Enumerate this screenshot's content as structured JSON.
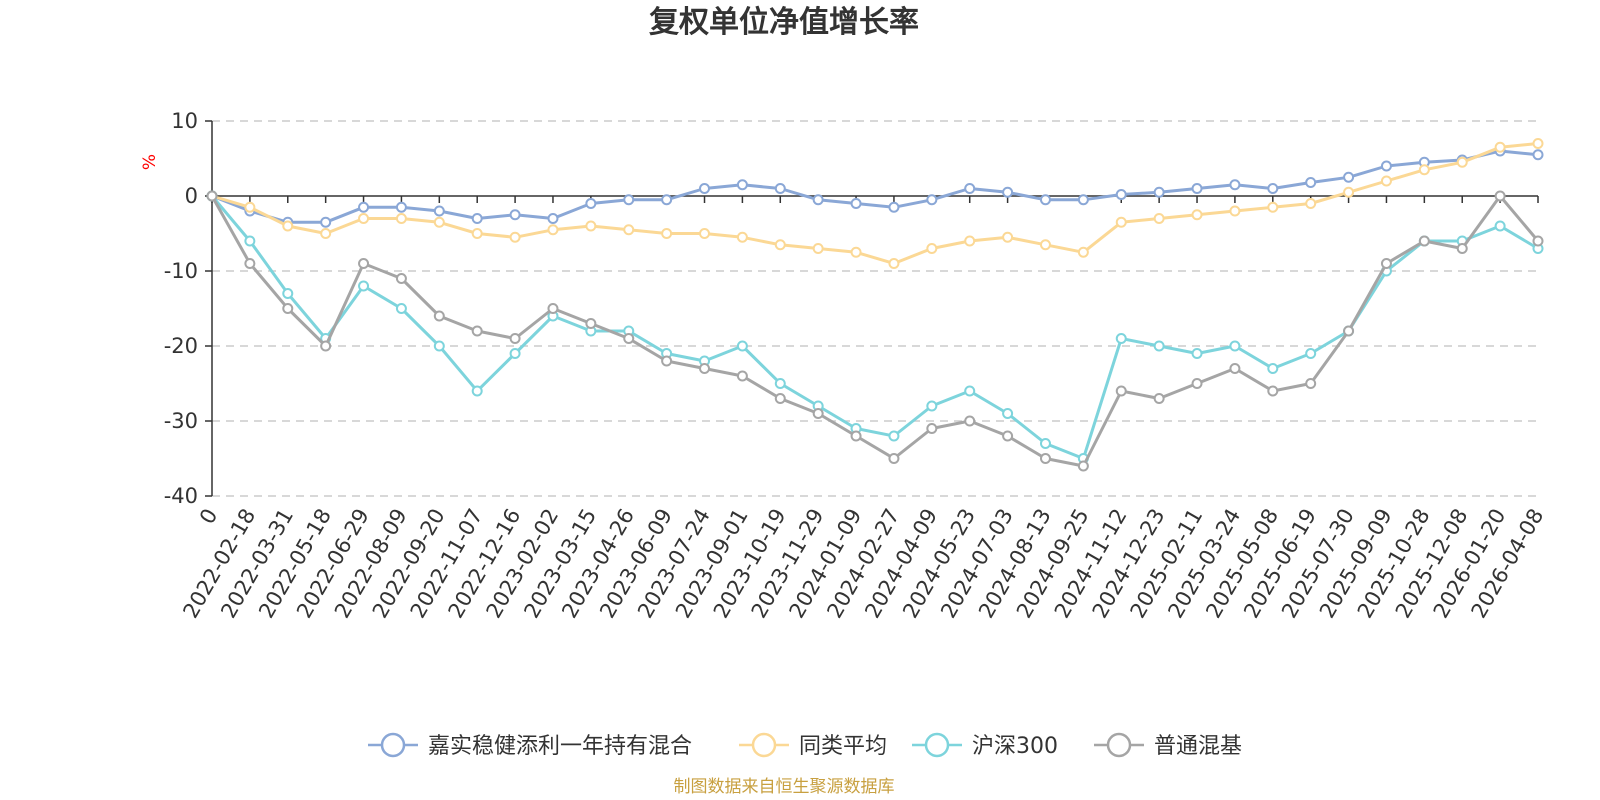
{
  "chart_data": {
    "type": "line",
    "title": "复权单位净值增长率",
    "ylabel": "%",
    "ylim": [
      -40,
      10
    ],
    "yticks": [
      10,
      0,
      -10,
      -20,
      -30,
      -40
    ],
    "grid": true,
    "legend_position": "bottom",
    "x_tick_labels": [
      "0",
      "2022-02-18",
      "2022-03-31",
      "2022-05-18",
      "2022-06-29",
      "2022-08-09",
      "2022-09-20",
      "2022-11-07",
      "2022-12-16",
      "2023-02-02",
      "2023-03-15",
      "2023-04-26",
      "2023-06-09",
      "2023-07-24",
      "2023-09-01",
      "2023-10-19",
      "2023-11-29",
      "2024-01-09",
      "2024-02-27",
      "2024-04-09",
      "2024-05-23",
      "2024-07-03",
      "2024-08-13",
      "2024-09-25",
      "2024-11-12",
      "2024-12-23",
      "2025-02-11",
      "2025-03-24",
      "2025-05-08",
      "2025-06-19",
      "2025-07-30",
      "2025-09-09",
      "2025-10-28",
      "2025-12-08",
      "2026-01-20",
      "2026-04-08"
    ],
    "series": [
      {
        "name": "嘉实稳健添利一年持有混合",
        "color": "#8aa7d6",
        "values": [
          0,
          -2,
          -3.5,
          -3.5,
          -1.5,
          -1.5,
          -2,
          -3,
          -2.5,
          -3,
          -1,
          -0.5,
          -0.5,
          1,
          1.5,
          1,
          -0.5,
          -1,
          -1.5,
          -0.5,
          1,
          0.5,
          -0.5,
          -0.5,
          0.2,
          0.5,
          1,
          1.5,
          1,
          1.8,
          2.5,
          4,
          4.5,
          4.8,
          6,
          5.5
        ]
      },
      {
        "name": "同类平均",
        "color": "#fbd895",
        "values": [
          0,
          -1.5,
          -4,
          -5,
          -3,
          -3,
          -3.5,
          -5,
          -5.5,
          -4.5,
          -4,
          -4.5,
          -5,
          -5,
          -5.5,
          -6.5,
          -7,
          -7.5,
          -9,
          -7,
          -6,
          -5.5,
          -6.5,
          -7.5,
          -3.5,
          -3,
          -2.5,
          -2,
          -1.5,
          -1,
          0.5,
          2,
          3.5,
          4.5,
          6.5,
          7
        ]
      },
      {
        "name": "沪深300",
        "color": "#7dd4dc",
        "values": [
          0,
          -6,
          -13,
          -19,
          -12,
          -15,
          -20,
          -26,
          -21,
          -16,
          -18,
          -18,
          -21,
          -22,
          -20,
          -25,
          -28,
          -31,
          -32,
          -28,
          -26,
          -29,
          -33,
          -35,
          -19,
          -20,
          -21,
          -20,
          -23,
          -21,
          -18,
          -10,
          -6,
          -6,
          -4,
          -7
        ]
      },
      {
        "name": "普通混基",
        "color": "#a5a5a5",
        "values": [
          0,
          -9,
          -15,
          -20,
          -9,
          -11,
          -16,
          -18,
          -19,
          -15,
          -17,
          -19,
          -22,
          -23,
          -24,
          -27,
          -29,
          -32,
          -35,
          -31,
          -30,
          -32,
          -35,
          -36,
          -26,
          -27,
          -25,
          -23,
          -26,
          -25,
          -18,
          -9,
          -6,
          -7,
          0,
          -6
        ]
      }
    ]
  },
  "footer": "制图数据来自恒生聚源数据库"
}
